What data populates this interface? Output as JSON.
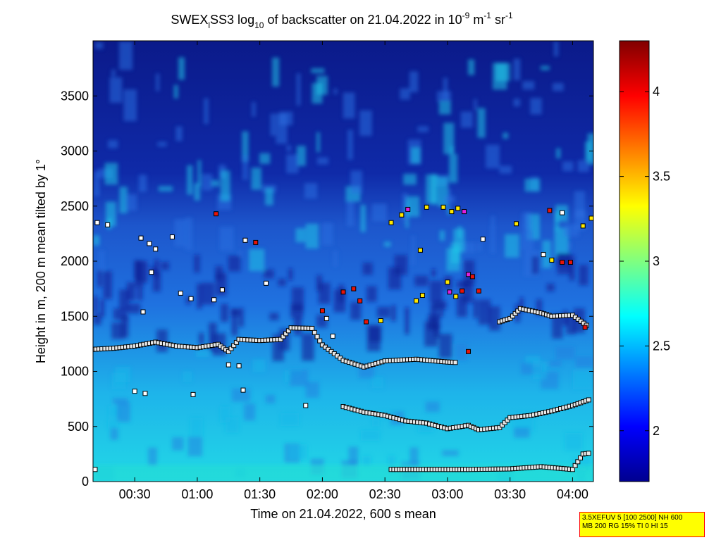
{
  "title": {
    "prefix": "SWEX",
    "prefix_sub": "l",
    "main": "SS3 log",
    "main_sub": "10",
    "middle": " of backscatter on 21.04.2022 in 10",
    "exp1": "-9",
    "unit1": " m",
    "exp2": "-1",
    "unit2": " sr",
    "exp3": "-1"
  },
  "colors": {
    "bg_low": "#0b1a8a",
    "bg_mid": "#1e5fd8",
    "bg_high": "#19d0e8",
    "marker_edge": "#000000"
  },
  "info_box": {
    "line1": "3.5XEFUV 5 [100 2500] NH 600",
    "line2": "MB 200 RG 15% TI 0 HI 15"
  },
  "chart_data": {
    "type": "heatmap",
    "xlabel": "Time on 21.04.2022, 600 s mean",
    "ylabel": "Height in m, 200 m mean tilted by 1°",
    "xlim": [
      "00:10",
      "04:10"
    ],
    "ylim": [
      0,
      4000
    ],
    "x_ticks": [
      "00:30",
      "01:00",
      "01:30",
      "02:00",
      "02:30",
      "03:00",
      "03:30",
      "04:00"
    ],
    "y_ticks": [
      0,
      500,
      1000,
      1500,
      2000,
      2500,
      3000,
      3500
    ],
    "colorbar": {
      "range": [
        1.7,
        4.3
      ],
      "ticks": [
        2,
        2.5,
        3,
        3.5,
        4
      ],
      "colormap": "jet"
    },
    "layers": [
      {
        "name": "boundary layer top",
        "points": [
          [
            "00:10",
            1200
          ],
          [
            "00:20",
            1210
          ],
          [
            "00:30",
            1230
          ],
          [
            "00:40",
            1265
          ],
          [
            "00:50",
            1230
          ],
          [
            "01:00",
            1215
          ],
          [
            "01:10",
            1245
          ],
          [
            "01:15",
            1180
          ],
          [
            "01:20",
            1290
          ],
          [
            "01:30",
            1280
          ],
          [
            "01:40",
            1290
          ],
          [
            "01:45",
            1395
          ],
          [
            "01:55",
            1390
          ],
          [
            "02:00",
            1240
          ],
          [
            "02:10",
            1100
          ],
          [
            "02:20",
            1040
          ],
          [
            "02:30",
            1095
          ],
          [
            "02:45",
            1110
          ],
          [
            "03:00",
            1085
          ],
          [
            "03:05",
            1080
          ]
        ]
      },
      {
        "name": "lower layer",
        "points": [
          [
            "02:10",
            680
          ],
          [
            "02:20",
            630
          ],
          [
            "02:30",
            600
          ],
          [
            "02:40",
            550
          ],
          [
            "02:50",
            530
          ],
          [
            "03:00",
            480
          ],
          [
            "03:10",
            510
          ],
          [
            "03:15",
            470
          ],
          [
            "03:25",
            490
          ],
          [
            "03:30",
            580
          ],
          [
            "03:40",
            600
          ],
          [
            "03:50",
            640
          ],
          [
            "04:00",
            690
          ],
          [
            "04:09",
            750
          ]
        ]
      },
      {
        "name": "upper layer",
        "points": [
          [
            "03:25",
            1450
          ],
          [
            "03:30",
            1480
          ],
          [
            "03:35",
            1570
          ],
          [
            "03:45",
            1530
          ],
          [
            "03:50",
            1500
          ],
          [
            "04:00",
            1510
          ],
          [
            "04:08",
            1400
          ]
        ]
      },
      {
        "name": "near-ground layer",
        "points": [
          [
            "02:33",
            110
          ],
          [
            "02:50",
            110
          ],
          [
            "03:10",
            110
          ],
          [
            "03:30",
            115
          ],
          [
            "03:45",
            135
          ],
          [
            "04:00",
            110
          ],
          [
            "04:05",
            250
          ],
          [
            "04:09",
            260
          ]
        ]
      }
    ],
    "scattered_points": [
      [
        "00:12",
        2350,
        "white"
      ],
      [
        "00:17",
        2330,
        "white"
      ],
      [
        "00:33",
        2210,
        "white"
      ],
      [
        "00:37",
        2160,
        "white"
      ],
      [
        "00:40",
        2110,
        "white"
      ],
      [
        "00:38",
        1900,
        "white"
      ],
      [
        "00:48",
        2220,
        "white"
      ],
      [
        "00:52",
        1710,
        "white"
      ],
      [
        "00:57",
        1660,
        "white"
      ],
      [
        "01:08",
        1650,
        "white"
      ],
      [
        "01:12",
        1740,
        "white"
      ],
      [
        "00:34",
        1540,
        "white"
      ],
      [
        "01:09",
        2430,
        "red"
      ],
      [
        "01:23",
        2190,
        "white"
      ],
      [
        "01:28",
        2170,
        "red"
      ],
      [
        "01:33",
        1800,
        "white"
      ],
      [
        "00:30",
        820,
        "white"
      ],
      [
        "00:35",
        800,
        "white"
      ],
      [
        "00:58",
        790,
        "white"
      ],
      [
        "01:15",
        1060,
        "white"
      ],
      [
        "01:20",
        1050,
        "white"
      ],
      [
        "01:22",
        830,
        "white"
      ],
      [
        "01:52",
        690,
        "white"
      ],
      [
        "02:00",
        1550,
        "red"
      ],
      [
        "02:02",
        1480,
        "white"
      ],
      [
        "02:10",
        1720,
        "red"
      ],
      [
        "02:15",
        1750,
        "red"
      ],
      [
        "02:18",
        1640,
        "red"
      ],
      [
        "02:05",
        1320,
        "white"
      ],
      [
        "02:21",
        1450,
        "red"
      ],
      [
        "02:28",
        1460,
        "yellow"
      ],
      [
        "02:33",
        2350,
        "yellow"
      ],
      [
        "02:38",
        2420,
        "yellow"
      ],
      [
        "02:41",
        2470,
        "magenta"
      ],
      [
        "02:45",
        1640,
        "yellow"
      ],
      [
        "02:48",
        1690,
        "yellow"
      ],
      [
        "02:47",
        2100,
        "yellow"
      ],
      [
        "02:50",
        2490,
        "yellow"
      ],
      [
        "02:58",
        2490,
        "yellow"
      ],
      [
        "03:02",
        2450,
        "yellow"
      ],
      [
        "03:05",
        2480,
        "yellow"
      ],
      [
        "03:08",
        2450,
        "magenta"
      ],
      [
        "03:00",
        1810,
        "yellow"
      ],
      [
        "03:01",
        1720,
        "magenta"
      ],
      [
        "03:04",
        1680,
        "yellow"
      ],
      [
        "03:07",
        1730,
        "red"
      ],
      [
        "03:10",
        1880,
        "magenta"
      ],
      [
        "03:12",
        1860,
        "red"
      ],
      [
        "03:15",
        1730,
        "red"
      ],
      [
        "03:10",
        1180,
        "red"
      ],
      [
        "03:17",
        2200,
        "white"
      ],
      [
        "03:33",
        2340,
        "yellow"
      ],
      [
        "03:49",
        2460,
        "red"
      ],
      [
        "03:55",
        2440,
        "white"
      ],
      [
        "03:46",
        2060,
        "white"
      ],
      [
        "03:50",
        2010,
        "yellow"
      ],
      [
        "03:55",
        1990,
        "red"
      ],
      [
        "03:59",
        1990,
        "red"
      ],
      [
        "04:05",
        2320,
        "yellow"
      ],
      [
        "04:09",
        2390,
        "yellow"
      ],
      [
        "00:11",
        110,
        "white"
      ],
      [
        "04:06",
        1400,
        "red"
      ]
    ]
  }
}
